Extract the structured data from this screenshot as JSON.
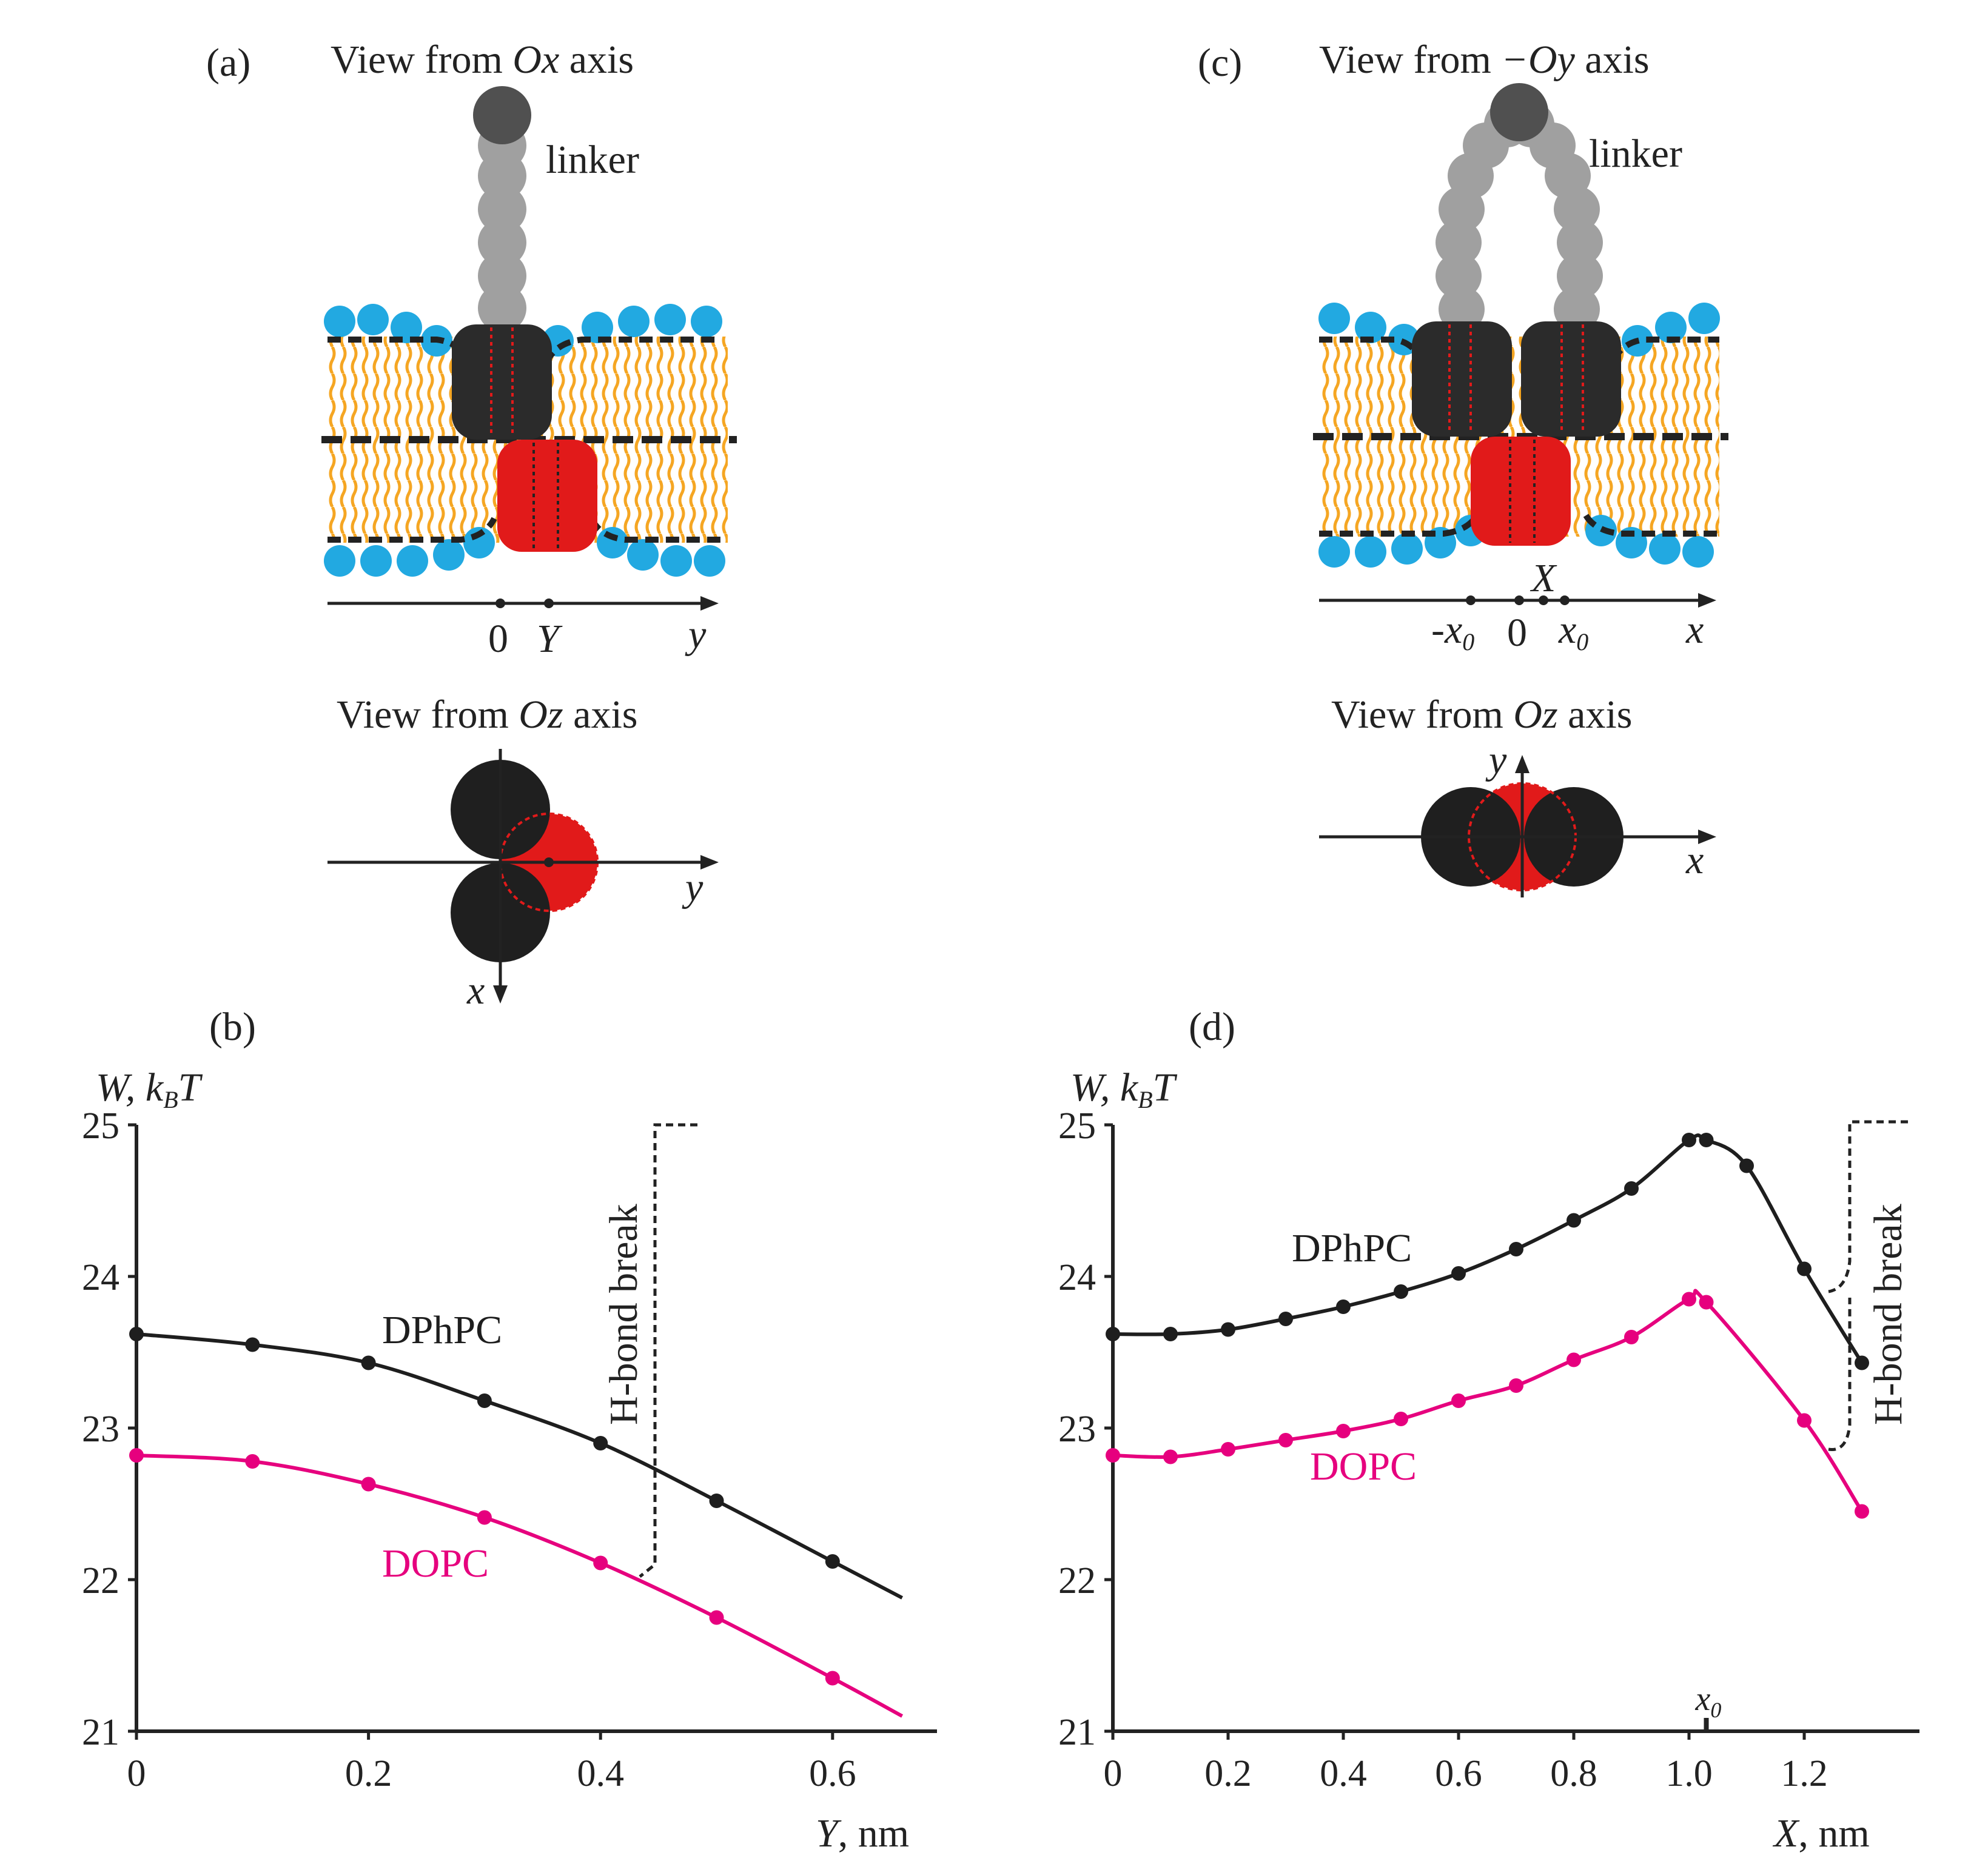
{
  "panels": {
    "a": {
      "label": "(a)",
      "view_title": {
        "prefix": "View from ",
        "axis": "Ox",
        "suffix": " axis"
      },
      "linker_label": "linker",
      "axis_ticks": {
        "zero": "0",
        "Y": "Y",
        "y": "y"
      },
      "top_view_title": {
        "prefix": "View from ",
        "axis": "Oz",
        "suffix": " axis"
      },
      "top_view_axes": {
        "y": "y",
        "x": "x"
      }
    },
    "c": {
      "label": "(c)",
      "view_title": {
        "prefix": "View from ",
        "axis": "−Oy",
        "suffix": " axis"
      },
      "linker_label": "linker",
      "axis_ticks": {
        "X": "X",
        "minus_x0": "-x",
        "zero": "0",
        "x0": "x",
        "x0_sub": "0",
        "x": "x"
      },
      "top_view_title": {
        "prefix": "View from ",
        "axis": "Oz",
        "suffix": " axis"
      },
      "top_view_axes": {
        "y": "y",
        "x": "x"
      }
    },
    "b": {
      "label": "(b)"
    },
    "d": {
      "label": "(d)"
    }
  },
  "colors": {
    "DPhPC": "#1e1e1e",
    "DOPC": "#e6007e",
    "lipid_head": "#22a9e1",
    "lipid_tail": "#f5a623",
    "peptide_dark": "#2b2b2b",
    "peptide_red": "#e11a1a",
    "linker": "#a0a0a0",
    "linker_top": "#505050"
  },
  "chart_data": [
    {
      "panel": "b",
      "type": "line",
      "ylabel": {
        "main": "W, k",
        "sub": "B",
        "tail": "T"
      },
      "xlabel": {
        "var": "Y",
        "unit": ", nm"
      },
      "xlim": [
        0,
        0.69
      ],
      "ylim": [
        21,
        25
      ],
      "xticks": [
        "0",
        "0.2",
        "0.4",
        "0.6"
      ],
      "yticks": [
        "21",
        "22",
        "23",
        "24",
        "25"
      ],
      "annotation": "H-bond break",
      "series": [
        {
          "name": "DPhPC",
          "x": [
            0,
            0.1,
            0.2,
            0.3,
            0.4,
            0.5,
            0.6
          ],
          "values": [
            23.62,
            23.55,
            23.43,
            23.18,
            22.9,
            22.52,
            22.12
          ],
          "curve_end": [
            0.66,
            21.88
          ]
        },
        {
          "name": "DOPC",
          "x": [
            0,
            0.1,
            0.2,
            0.3,
            0.4,
            0.5,
            0.6
          ],
          "values": [
            22.82,
            22.78,
            22.63,
            22.41,
            22.11,
            21.75,
            21.35
          ],
          "curve_end": [
            0.66,
            21.1
          ]
        }
      ]
    },
    {
      "panel": "d",
      "type": "line",
      "ylabel": {
        "main": "W, k",
        "sub": "B",
        "tail": "T"
      },
      "xlabel": {
        "var": "X",
        "unit": ", nm"
      },
      "xlim": [
        0,
        1.4
      ],
      "ylim": [
        21,
        25
      ],
      "xticks": [
        "0",
        "0.2",
        "0.4",
        "0.6",
        "0.8",
        "1.0",
        "1.2"
      ],
      "yticks": [
        "21",
        "22",
        "23",
        "24",
        "25"
      ],
      "x0_marker": {
        "x": 1.03,
        "label": "x",
        "sub": "0"
      },
      "annotation": "H-bond break",
      "series": [
        {
          "name": "DPhPC",
          "x": [
            0,
            0.1,
            0.2,
            0.3,
            0.4,
            0.5,
            0.6,
            0.7,
            0.8,
            0.9,
            1.0,
            1.03,
            1.1,
            1.2,
            1.3
          ],
          "values": [
            23.62,
            23.62,
            23.65,
            23.72,
            23.8,
            23.9,
            24.02,
            24.18,
            24.37,
            24.58,
            24.9,
            24.9,
            24.73,
            24.05,
            23.43
          ]
        },
        {
          "name": "DOPC",
          "x": [
            0,
            0.1,
            0.2,
            0.3,
            0.4,
            0.5,
            0.6,
            0.7,
            0.8,
            0.9,
            1.0,
            1.03,
            1.2,
            1.3
          ],
          "values": [
            22.82,
            22.81,
            22.86,
            22.92,
            22.98,
            23.06,
            23.18,
            23.28,
            23.45,
            23.6,
            23.85,
            23.83,
            23.05,
            22.45
          ]
        }
      ]
    }
  ]
}
